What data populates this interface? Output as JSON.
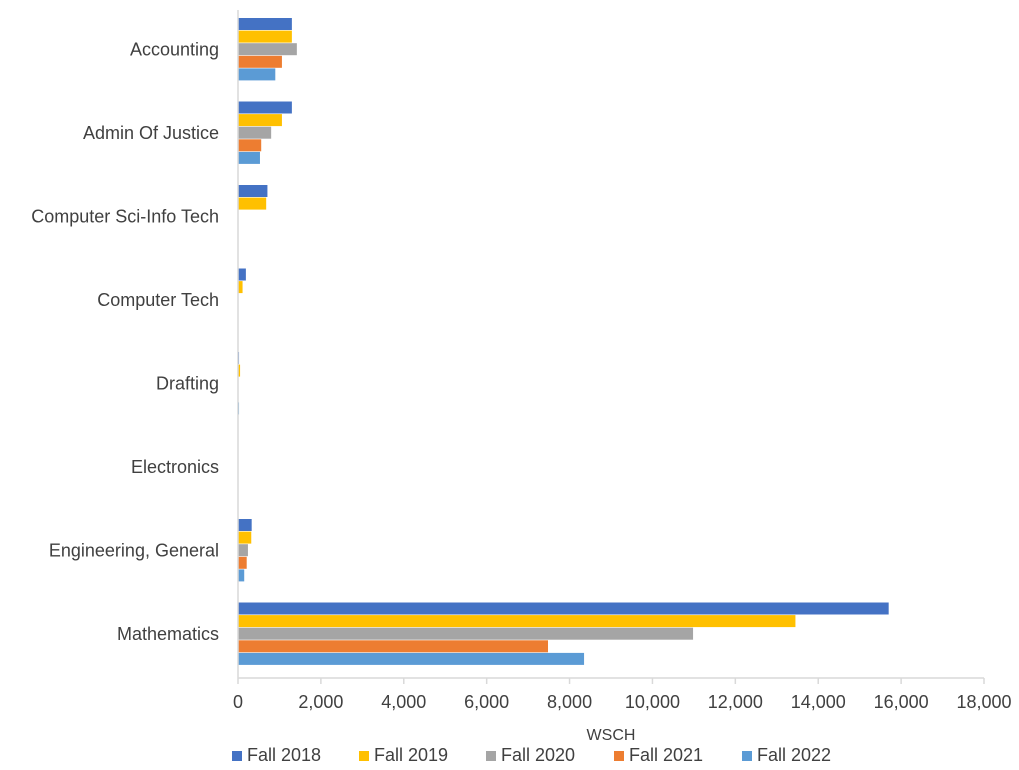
{
  "chart_data": {
    "type": "bar",
    "orientation": "horizontal",
    "categories": [
      "Accounting",
      "Admin Of Justice",
      "Computer Sci-Info Tech",
      "Computer Tech",
      "Drafting",
      "Electronics",
      "Engineering, General",
      "Mathematics"
    ],
    "series": [
      {
        "name": "Fall 2018",
        "color": "#4472C4",
        "values": [
          1300,
          1300,
          710,
          190,
          25,
          0,
          330,
          15700
        ]
      },
      {
        "name": "Fall 2019",
        "color": "#FFC000",
        "values": [
          1300,
          1060,
          680,
          110,
          50,
          0,
          320,
          13450
        ]
      },
      {
        "name": "Fall 2020",
        "color": "#A5A5A5",
        "values": [
          1420,
          800,
          0,
          0,
          0,
          0,
          240,
          10980
        ]
      },
      {
        "name": "Fall 2021",
        "color": "#ED7D31",
        "values": [
          1060,
          560,
          0,
          0,
          0,
          0,
          210,
          7480
        ]
      },
      {
        "name": "Fall 2022",
        "color": "#5B9BD5",
        "values": [
          900,
          530,
          0,
          0,
          25,
          0,
          150,
          8350
        ]
      }
    ],
    "xlabel": "WSCH",
    "ylabel": "",
    "xlim": [
      0,
      18000
    ],
    "xticks": [
      "0",
      "2,000",
      "4,000",
      "6,000",
      "8,000",
      "10,000",
      "12,000",
      "14,000",
      "16,000",
      "18,000"
    ],
    "grid": false,
    "legend_position": "bottom"
  }
}
